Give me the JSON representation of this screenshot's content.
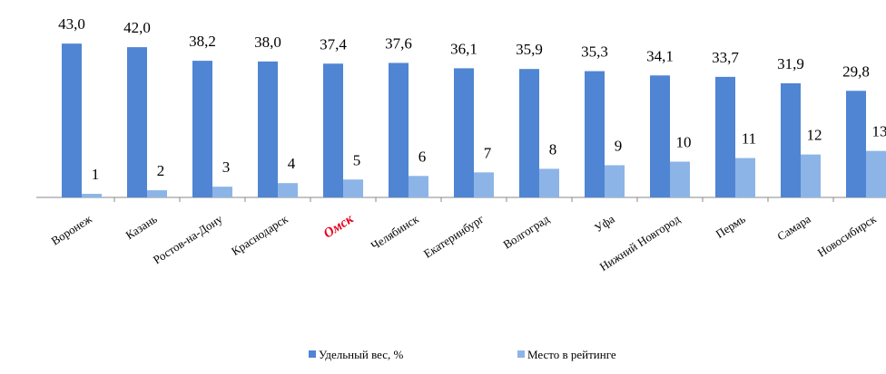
{
  "chart_data": {
    "type": "bar",
    "categories": [
      "Воронеж",
      "Казань",
      "Ростов-на-Дону",
      "Краснодарск",
      "Омск",
      "Челябинск",
      "Екатеринбург",
      "Волгоград",
      "Уфа",
      "Нижний Новгород",
      "Пермь",
      "Самара",
      "Новосибирск"
    ],
    "highlight": {
      "index": 4,
      "color": "#e8001c"
    },
    "series": [
      {
        "name": "Удельный вес, %",
        "color": "#4f85d3",
        "values": [
          43.0,
          42.0,
          38.2,
          38.0,
          37.4,
          37.6,
          36.1,
          35.9,
          35.3,
          34.1,
          33.7,
          31.9,
          29.8
        ],
        "value_labels": [
          "43,0",
          "42,0",
          "38,2",
          "38,0",
          "37,4",
          "37,6",
          "36,1",
          "35,9",
          "35,3",
          "34,1",
          "33,7",
          "31,9",
          "29,8"
        ]
      },
      {
        "name": "Место в рейтинге",
        "color": "#8db4e7",
        "values": [
          1,
          2,
          3,
          4,
          5,
          6,
          7,
          8,
          9,
          10,
          11,
          12,
          13
        ]
      }
    ]
  }
}
